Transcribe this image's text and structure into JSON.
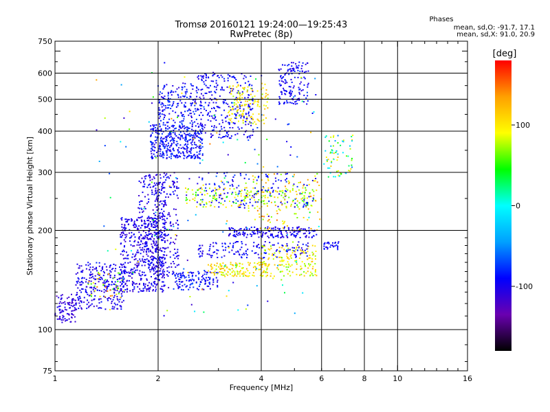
{
  "chart_data": {
    "type": "scatter",
    "title": "Tromsø 20160121 19:24:00—19:25:43",
    "subtitle": "RwPretec (8p)",
    "xlabel": "Frequency [MHz]",
    "ylabel": "Stationary phase Virtual Height [km]",
    "x_scale": "log",
    "y_scale": "log",
    "xlim": [
      1,
      16
    ],
    "ylim": [
      75,
      750
    ],
    "x_ticks": [
      1,
      2,
      4,
      6,
      8,
      10,
      16
    ],
    "y_ticks": [
      75,
      100,
      200,
      300,
      400,
      500,
      600,
      750
    ],
    "x_gridlines": [
      2,
      4,
      6,
      8,
      10
    ],
    "y_gridlines": [
      100,
      200,
      300,
      400,
      500,
      600
    ],
    "grid": true,
    "phase_info": {
      "heading": "Phases",
      "line_o": "mean, sd,O: -91.7, 17.1",
      "line_x": "mean, sd,X: 91.0, 20.9"
    },
    "colorbar": {
      "label": "[deg]",
      "range": [
        -180,
        180
      ],
      "ticks": [
        100,
        0,
        -100
      ],
      "colormap": [
        "#000000",
        "#6a00b0",
        "#0000ff",
        "#00a0ff",
        "#00ffff",
        "#00ff00",
        "#ffff00",
        "#ffa000",
        "#ff0000"
      ]
    },
    "clusters": [
      {
        "f": [
          1.0,
          1.15
        ],
        "h": [
          105,
          128
        ],
        "phase": [
          -125,
          -95
        ],
        "count": 90
      },
      {
        "f": [
          1.15,
          1.6
        ],
        "h": [
          115,
          160
        ],
        "phase": [
          -115,
          -85
        ],
        "count": 280
      },
      {
        "f": [
          1.25,
          1.6
        ],
        "h": [
          125,
          150
        ],
        "phase": [
          40,
          150
        ],
        "count": 40
      },
      {
        "f": [
          1.55,
          2.0
        ],
        "h": [
          130,
          220
        ],
        "phase": [
          -120,
          -85
        ],
        "count": 380
      },
      {
        "f": [
          1.75,
          2.3
        ],
        "h": [
          145,
          300
        ],
        "phase": [
          -120,
          -85
        ],
        "count": 300
      },
      {
        "f": [
          1.95,
          2.1
        ],
        "h": [
          130,
          280
        ],
        "phase": [
          -115,
          -85
        ],
        "count": 160
      },
      {
        "f": [
          1.9,
          2.7
        ],
        "h": [
          330,
          420
        ],
        "phase": [
          -110,
          -70
        ],
        "count": 380
      },
      {
        "f": [
          2.0,
          2.6
        ],
        "h": [
          420,
          560
        ],
        "phase": [
          -110,
          -70
        ],
        "count": 170
      },
      {
        "f": [
          2.6,
          3.8
        ],
        "h": [
          380,
          600
        ],
        "phase": [
          -110,
          -80
        ],
        "count": 300
      },
      {
        "f": [
          3.2,
          4.2
        ],
        "h": [
          420,
          560
        ],
        "phase": [
          70,
          130
        ],
        "count": 130
      },
      {
        "f": [
          4.5,
          5.5
        ],
        "h": [
          480,
          650
        ],
        "phase": [
          -110,
          -80
        ],
        "count": 140
      },
      {
        "f": [
          2.2,
          3.0
        ],
        "h": [
          132,
          150
        ],
        "phase": [
          -110,
          -70
        ],
        "count": 130
      },
      {
        "f": [
          2.8,
          4.2
        ],
        "h": [
          145,
          160
        ],
        "phase": [
          70,
          130
        ],
        "count": 140
      },
      {
        "f": [
          4.0,
          5.8
        ],
        "h": [
          145,
          180
        ],
        "phase": [
          60,
          130
        ],
        "count": 160
      },
      {
        "f": [
          2.6,
          5.5
        ],
        "h": [
          165,
          185
        ],
        "phase": [
          -110,
          -80
        ],
        "count": 140
      },
      {
        "f": [
          3.2,
          5.8
        ],
        "h": [
          190,
          205
        ],
        "phase": [
          -115,
          -85
        ],
        "count": 180
      },
      {
        "f": [
          2.4,
          5.8
        ],
        "h": [
          235,
          270
        ],
        "phase": [
          40,
          120
        ],
        "count": 180
      },
      {
        "f": [
          2.6,
          5.8
        ],
        "h": [
          235,
          300
        ],
        "phase": [
          -110,
          -70
        ],
        "count": 150
      },
      {
        "f": [
          3.6,
          6.0
        ],
        "h": [
          200,
          300
        ],
        "phase": [
          60,
          150
        ],
        "count": 120
      },
      {
        "f": [
          6.1,
          7.4
        ],
        "h": [
          290,
          390
        ],
        "phase": [
          -60,
          120
        ],
        "count": 70
      },
      {
        "f": [
          6.1,
          6.8
        ],
        "h": [
          175,
          185
        ],
        "phase": [
          -110,
          -80
        ],
        "count": 30
      },
      {
        "f": [
          1.3,
          6.0
        ],
        "h": [
          110,
          650
        ],
        "phase": [
          -120,
          150
        ],
        "count": 160
      }
    ]
  }
}
